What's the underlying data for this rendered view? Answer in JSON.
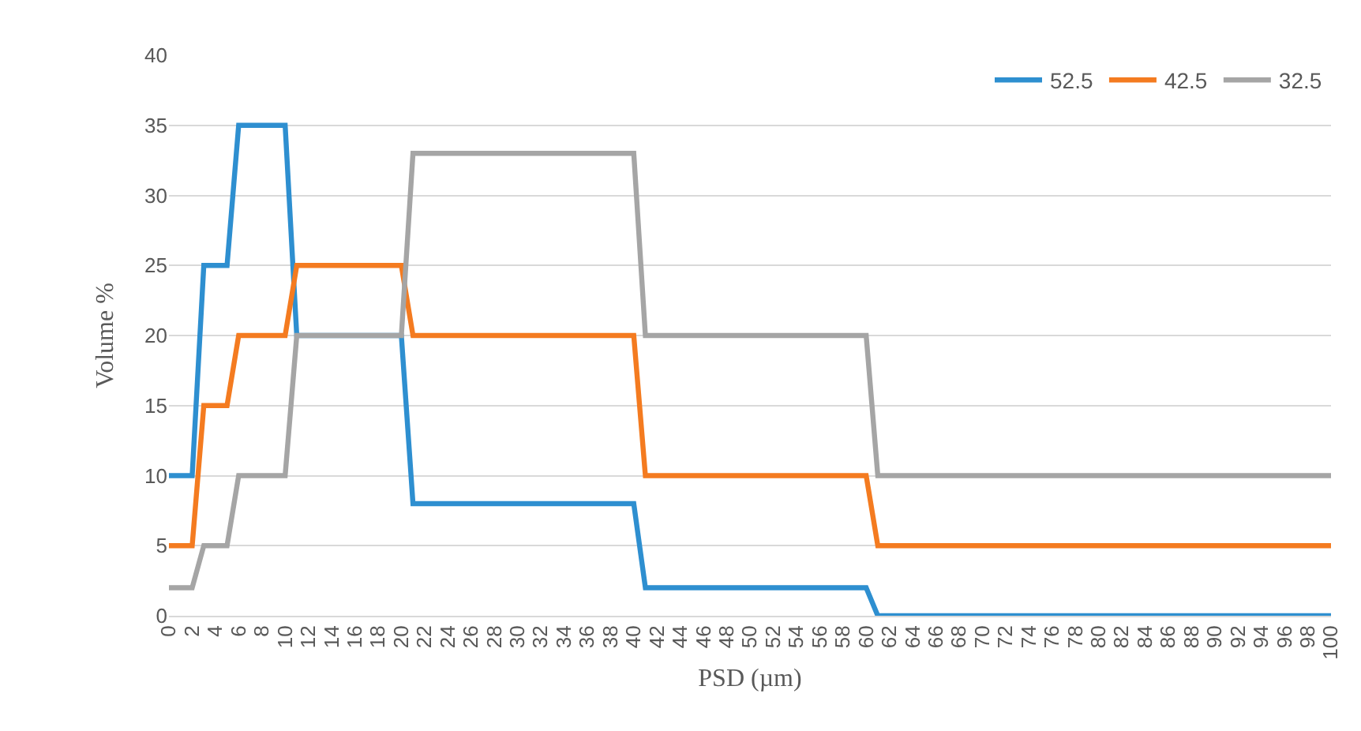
{
  "chart_data": {
    "type": "line",
    "xlabel": "PSD (µm)",
    "ylabel": "Volume %",
    "x": [
      0,
      2,
      3,
      5,
      6,
      10,
      11,
      20,
      21,
      40,
      41,
      60,
      61,
      100
    ],
    "series": [
      {
        "name": "52.5",
        "color": "#2e8fd0",
        "values": [
          10,
          10,
          25,
          25,
          35,
          35,
          20,
          20,
          8,
          8,
          2,
          2,
          0,
          0
        ]
      },
      {
        "name": "42.5",
        "color": "#f47b20",
        "values": [
          5,
          5,
          15,
          15,
          20,
          20,
          25,
          25,
          20,
          20,
          10,
          10,
          5,
          5
        ]
      },
      {
        "name": "32.5",
        "color": "#a5a5a5",
        "values": [
          2,
          2,
          5,
          5,
          10,
          10,
          20,
          20,
          33,
          33,
          20,
          20,
          10,
          10
        ]
      }
    ],
    "xlim": [
      0,
      100
    ],
    "xticks": [
      0,
      2,
      4,
      6,
      8,
      10,
      12,
      14,
      16,
      18,
      20,
      22,
      24,
      26,
      28,
      30,
      32,
      34,
      36,
      38,
      40,
      42,
      44,
      46,
      48,
      50,
      52,
      54,
      56,
      58,
      60,
      62,
      64,
      66,
      68,
      70,
      72,
      74,
      76,
      78,
      80,
      82,
      84,
      86,
      88,
      90,
      92,
      94,
      96,
      98,
      100
    ],
    "ylim": [
      0,
      40
    ],
    "yticks": [
      0,
      5,
      10,
      15,
      20,
      25,
      30,
      35,
      40
    ],
    "grid": "y",
    "legend": "top right",
    "marker": "none",
    "line_style": "solid"
  }
}
